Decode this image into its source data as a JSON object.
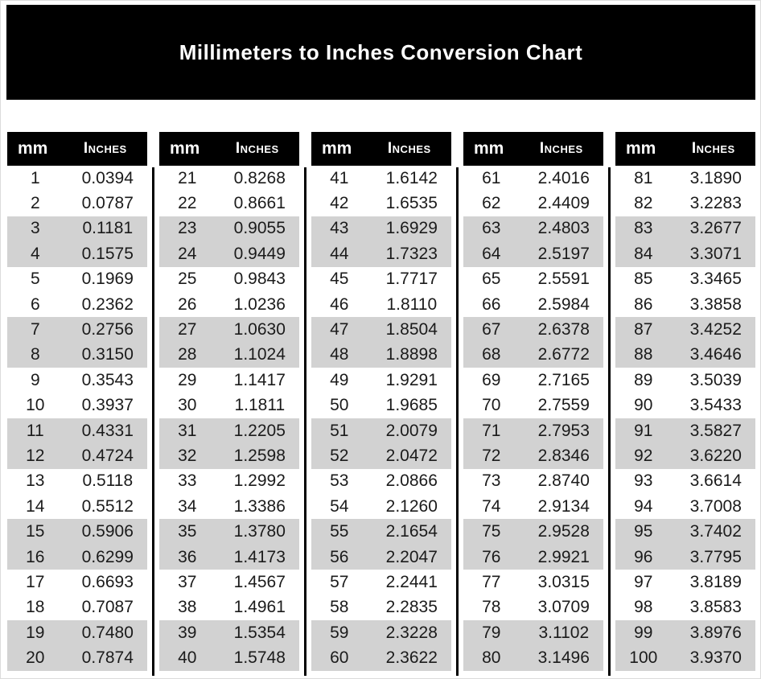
{
  "title": "Millimeters to Inches Conversion Chart",
  "colors": {
    "banner_bg": "#000000",
    "banner_text": "#ffffff",
    "table_header_bg": "#000000",
    "table_header_text": "#ffffff",
    "row_stripe": "#d2d2d2",
    "row_plain": "#ffffff",
    "divider": "#000000",
    "body_text": "#1b1b1b",
    "page_bg": "#ffffff"
  },
  "chart_data": {
    "type": "table",
    "title": "Millimeters to Inches Conversion Chart",
    "columns": [
      "mm",
      "Inches"
    ],
    "stripe_pattern": "rows shaded in alternating pairs (rows 3-4, 7-8, 11-12, ...)",
    "tables": [
      {
        "rows": [
          [
            "1",
            "0.0394"
          ],
          [
            "2",
            "0.0787"
          ],
          [
            "3",
            "0.1181"
          ],
          [
            "4",
            "0.1575"
          ],
          [
            "5",
            "0.1969"
          ],
          [
            "6",
            "0.2362"
          ],
          [
            "7",
            "0.2756"
          ],
          [
            "8",
            "0.3150"
          ],
          [
            "9",
            "0.3543"
          ],
          [
            "10",
            "0.3937"
          ],
          [
            "11",
            "0.4331"
          ],
          [
            "12",
            "0.4724"
          ],
          [
            "13",
            "0.5118"
          ],
          [
            "14",
            "0.5512"
          ],
          [
            "15",
            "0.5906"
          ],
          [
            "16",
            "0.6299"
          ],
          [
            "17",
            "0.6693"
          ],
          [
            "18",
            "0.7087"
          ],
          [
            "19",
            "0.7480"
          ],
          [
            "20",
            "0.7874"
          ]
        ]
      },
      {
        "rows": [
          [
            "21",
            "0.8268"
          ],
          [
            "22",
            "0.8661"
          ],
          [
            "23",
            "0.9055"
          ],
          [
            "24",
            "0.9449"
          ],
          [
            "25",
            "0.9843"
          ],
          [
            "26",
            "1.0236"
          ],
          [
            "27",
            "1.0630"
          ],
          [
            "28",
            "1.1024"
          ],
          [
            "29",
            "1.1417"
          ],
          [
            "30",
            "1.1811"
          ],
          [
            "31",
            "1.2205"
          ],
          [
            "32",
            "1.2598"
          ],
          [
            "33",
            "1.2992"
          ],
          [
            "34",
            "1.3386"
          ],
          [
            "35",
            "1.3780"
          ],
          [
            "36",
            "1.4173"
          ],
          [
            "37",
            "1.4567"
          ],
          [
            "38",
            "1.4961"
          ],
          [
            "39",
            "1.5354"
          ],
          [
            "40",
            "1.5748"
          ]
        ]
      },
      {
        "rows": [
          [
            "41",
            "1.6142"
          ],
          [
            "42",
            "1.6535"
          ],
          [
            "43",
            "1.6929"
          ],
          [
            "44",
            "1.7323"
          ],
          [
            "45",
            "1.7717"
          ],
          [
            "46",
            "1.8110"
          ],
          [
            "47",
            "1.8504"
          ],
          [
            "48",
            "1.8898"
          ],
          [
            "49",
            "1.9291"
          ],
          [
            "50",
            "1.9685"
          ],
          [
            "51",
            "2.0079"
          ],
          [
            "52",
            "2.0472"
          ],
          [
            "53",
            "2.0866"
          ],
          [
            "54",
            "2.1260"
          ],
          [
            "55",
            "2.1654"
          ],
          [
            "56",
            "2.2047"
          ],
          [
            "57",
            "2.2441"
          ],
          [
            "58",
            "2.2835"
          ],
          [
            "59",
            "2.3228"
          ],
          [
            "60",
            "2.3622"
          ]
        ]
      },
      {
        "rows": [
          [
            "61",
            "2.4016"
          ],
          [
            "62",
            "2.4409"
          ],
          [
            "63",
            "2.4803"
          ],
          [
            "64",
            "2.5197"
          ],
          [
            "65",
            "2.5591"
          ],
          [
            "66",
            "2.5984"
          ],
          [
            "67",
            "2.6378"
          ],
          [
            "68",
            "2.6772"
          ],
          [
            "69",
            "2.7165"
          ],
          [
            "70",
            "2.7559"
          ],
          [
            "71",
            "2.7953"
          ],
          [
            "72",
            "2.8346"
          ],
          [
            "73",
            "2.8740"
          ],
          [
            "74",
            "2.9134"
          ],
          [
            "75",
            "2.9528"
          ],
          [
            "76",
            "2.9921"
          ],
          [
            "77",
            "3.0315"
          ],
          [
            "78",
            "3.0709"
          ],
          [
            "79",
            "3.1102"
          ],
          [
            "80",
            "3.1496"
          ]
        ]
      },
      {
        "rows": [
          [
            "81",
            "3.1890"
          ],
          [
            "82",
            "3.2283"
          ],
          [
            "83",
            "3.2677"
          ],
          [
            "84",
            "3.3071"
          ],
          [
            "85",
            "3.3465"
          ],
          [
            "86",
            "3.3858"
          ],
          [
            "87",
            "3.4252"
          ],
          [
            "88",
            "3.4646"
          ],
          [
            "89",
            "3.5039"
          ],
          [
            "90",
            "3.5433"
          ],
          [
            "91",
            "3.5827"
          ],
          [
            "92",
            "3.6220"
          ],
          [
            "93",
            "3.6614"
          ],
          [
            "94",
            "3.7008"
          ],
          [
            "95",
            "3.7402"
          ],
          [
            "96",
            "3.7795"
          ],
          [
            "97",
            "3.8189"
          ],
          [
            "98",
            "3.8583"
          ],
          [
            "99",
            "3.8976"
          ],
          [
            "100",
            "3.9370"
          ]
        ]
      }
    ]
  }
}
